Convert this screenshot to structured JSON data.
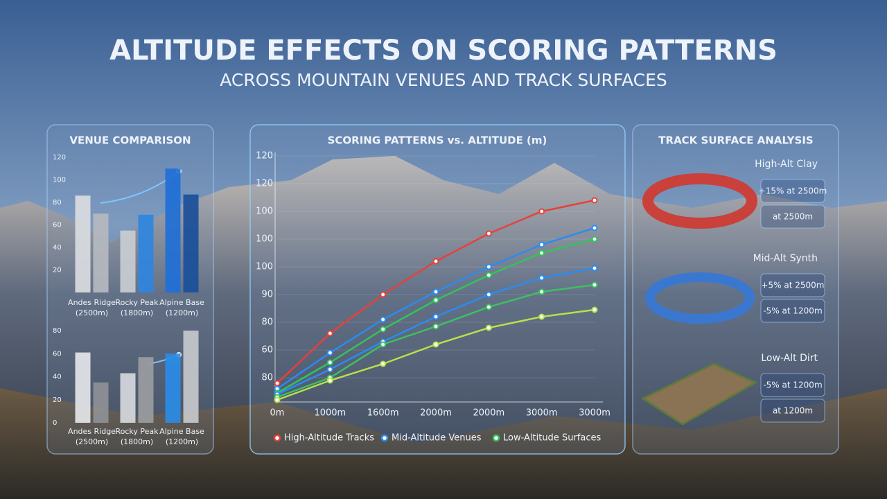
{
  "header": {
    "title": "ALTITUDE EFFECTS ON SCORING PATTERNS",
    "subtitle": "ACROSS MOUNTAIN VENUES AND TRACK SURFACES"
  },
  "chart_data": [
    {
      "type": "bar",
      "title": "VENUE COMPARISON",
      "categories": [
        "Andes Ridge",
        "Rocky Peak",
        "Alpine Base"
      ],
      "category_notes": [
        "(2500m)",
        "(1800m)",
        "(1200m)"
      ],
      "series": [
        {
          "colors": [
            "#d9dce0",
            "#c9cdd3",
            "#1f6fd6"
          ],
          "values": [
            86,
            55,
            110
          ]
        },
        {
          "colors": [
            "#b5b9bf",
            "#2f86e0",
            "#1a4f9a"
          ],
          "values": [
            70,
            69,
            87
          ]
        }
      ],
      "ylim": [
        0,
        120
      ],
      "yticks": [
        20,
        40,
        60,
        80,
        100,
        120
      ]
    },
    {
      "type": "bar",
      "categories": [
        "Andes Ridge",
        "Rocky Peak",
        "Alpine Base"
      ],
      "category_notes": [
        "(2500m)",
        "(1800m)",
        "(1200m)"
      ],
      "series": [
        {
          "colors": [
            "#e3e5e8",
            "#d6d8dc",
            "#2a8ce6"
          ],
          "values": [
            61,
            43,
            60
          ]
        },
        {
          "colors": [
            "#8e9196",
            "#9a9ca0",
            "#c6c8cb"
          ],
          "values": [
            35,
            57,
            80
          ]
        }
      ],
      "ylim": [
        0,
        80
      ],
      "yticks": [
        0,
        20,
        40,
        60,
        80
      ]
    },
    {
      "type": "line",
      "title": "SCORING PATTERNS vs. ALTITUDE (m)",
      "categories": [
        "0m",
        "1000m",
        "1600m",
        "2000m",
        "2000m",
        "3000m",
        "3000m"
      ],
      "series": [
        {
          "name": "High-Altitude Tracks",
          "color": "#e8403a",
          "values": [
            38,
            56,
            70,
            82,
            92,
            100,
            104
          ]
        },
        {
          "name": "Mid-Altitude Venues",
          "color": "#2a8cf0",
          "values": [
            36,
            49,
            61,
            71,
            80,
            88,
            94
          ]
        },
        {
          "name": "Low-Altitude Surfaces",
          "color": "#34c25a",
          "values": [
            34.5,
            45.5,
            57.5,
            68,
            77,
            85,
            90
          ]
        },
        {
          "color": "#2a8cf0",
          "values": [
            34,
            43,
            53,
            62,
            70,
            76,
            79.5
          ]
        },
        {
          "color": "#3ec060",
          "values": [
            33,
            40,
            52,
            58.5,
            65.5,
            71,
            73.5
          ]
        },
        {
          "color": "#b8e04a",
          "values": [
            32,
            39,
            45,
            52,
            58,
            62,
            64.5
          ]
        }
      ],
      "ylim": [
        30,
        120
      ],
      "yticks": [
        {
          "value": 40,
          "label": "80"
        },
        {
          "value": 50,
          "label": "60"
        },
        {
          "value": 60,
          "label": "80"
        },
        {
          "value": 70,
          "label": "90"
        },
        {
          "value": 80,
          "label": "100"
        },
        {
          "value": 90,
          "label": "100"
        },
        {
          "value": 100,
          "label": "100"
        },
        {
          "value": 110,
          "label": "120"
        },
        120
      ],
      "grid": true
    }
  ],
  "surfaces": {
    "title": "TRACK SURFACE ANALYSIS",
    "items": [
      {
        "name": "High-Alt Clay",
        "notes": [
          "+15% at 2500m",
          "at 2500m"
        ]
      },
      {
        "name": "Mid-Alt Synth",
        "notes": [
          "+5% at 2500m",
          "-5% at 1200m"
        ]
      },
      {
        "name": "Low-Alt Dirt",
        "notes": [
          "-5% at 1200m",
          "at 1200m"
        ]
      }
    ]
  }
}
